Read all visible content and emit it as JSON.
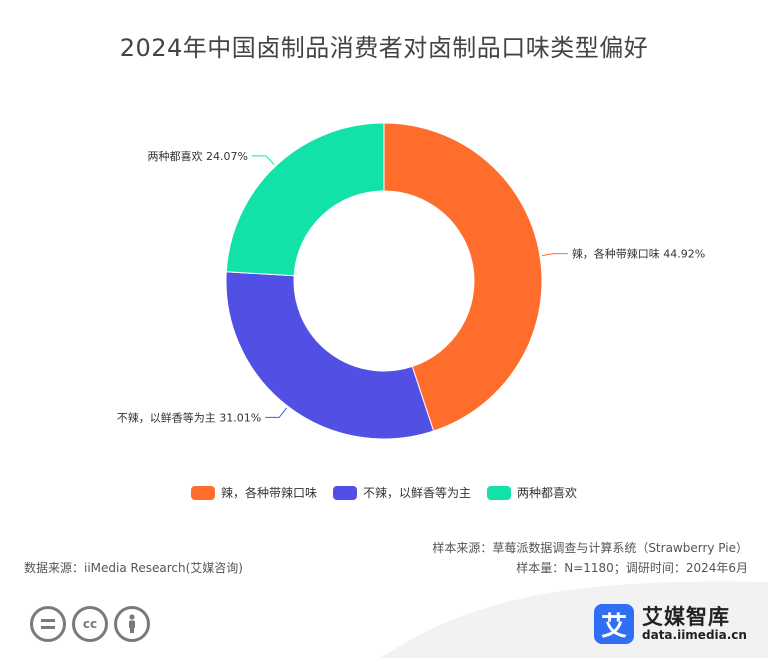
{
  "title": "2024年中国卤制品消费者对卤制品口味类型偏好",
  "chart_data": {
    "type": "pie",
    "categories": [
      "辣，各种带辣口味",
      "不辣，以鲜香等为主",
      "两种都喜欢"
    ],
    "values": [
      44.92,
      31.01,
      24.07
    ],
    "value_labels": [
      "44.92%",
      "31.01%",
      "24.07%"
    ],
    "unit": "%",
    "colors": [
      "#ff6d2d",
      "#524fe4",
      "#13e2a8"
    ],
    "donut": true,
    "legend_position": "bottom"
  },
  "legend": [
    {
      "label": "辣，各种带辣口味",
      "color": "#ff6d2d"
    },
    {
      "label": "不辣，以鲜香等为主",
      "color": "#524fe4"
    },
    {
      "label": "两种都喜欢",
      "color": "#13e2a8"
    }
  ],
  "footer": {
    "source": "数据来源：iiMedia Research(艾媒咨询)",
    "sample_source": "样本来源：草莓派数据调查与计算系统（Strawberry Pie）",
    "sample_size": "样本量：N=1180；调研时间：2024年6月"
  },
  "brand": {
    "logo_char": "艾",
    "name": "艾媒智库",
    "url": "data.iimedia.cn"
  },
  "cc_icons": [
    "=",
    "cc",
    "person-icon"
  ]
}
